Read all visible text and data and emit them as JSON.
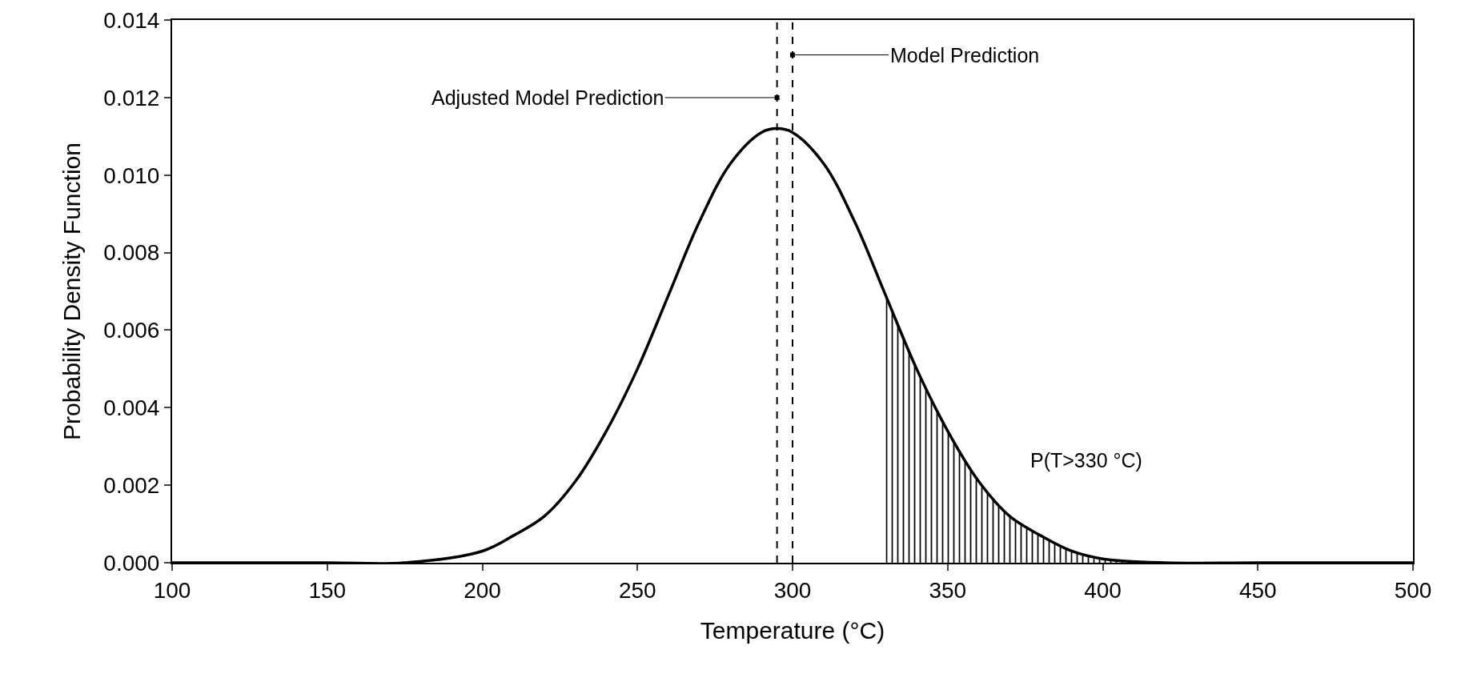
{
  "chart_data": {
    "type": "line",
    "xlabel": "Temperature (°C)",
    "ylabel": "Probability Density Function",
    "series": [
      {
        "color": "#000000",
        "x": [
          100,
          150,
          175,
          200,
          210,
          220,
          230,
          240,
          250,
          260,
          270,
          280,
          290,
          295,
          300,
          310,
          320,
          330,
          340,
          350,
          360,
          370,
          380,
          390,
          400,
          420,
          450,
          500
        ],
        "values": [
          0,
          0,
          0,
          0.0003,
          0.0007,
          0.0012,
          0.0021,
          0.0034,
          0.005,
          0.0069,
          0.0088,
          0.0103,
          0.0111,
          0.0112,
          0.0111,
          0.0103,
          0.0088,
          0.0069,
          0.005,
          0.0034,
          0.0021,
          0.0012,
          0.0007,
          0.0003,
          0.0001,
          0,
          0,
          0
        ]
      },
      {
        "type": "area",
        "color": "#000000",
        "x": [
          330,
          340,
          350,
          360,
          370,
          380,
          390,
          400,
          420
        ],
        "values": [
          0.0069,
          0.005,
          0.0034,
          0.0021,
          0.0012,
          0.0007,
          0.0003,
          0.0001,
          0
        ]
      }
    ],
    "xlim": [
      100,
      500
    ],
    "xticks": [
      100,
      150,
      200,
      250,
      300,
      350,
      400,
      450,
      500
    ],
    "ylim": [
      0,
      0.014
    ],
    "yticks": [
      {
        "value": 0,
        "label": "0.000"
      },
      {
        "value": 0.002,
        "label": "0.002"
      },
      {
        "value": 0.004,
        "label": "0.004"
      },
      {
        "value": 0.006,
        "label": "0.006"
      },
      {
        "value": 0.008,
        "label": "0.008"
      },
      {
        "value": 0.01,
        "label": "0.010"
      },
      {
        "value": 0.012,
        "label": "0.012"
      },
      {
        "value": 0.014,
        "label": "0.014"
      }
    ],
    "ref_lines": [
      {
        "axis": "x",
        "value": 295,
        "label": "Adjusted Model Prediction",
        "line_style": "dashed",
        "color": "#000000"
      },
      {
        "axis": "x",
        "value": 300,
        "label": "Model Prediction",
        "line_style": "dashed",
        "color": "#000000"
      }
    ],
    "annotations": [
      "P(T>330 °C)"
    ],
    "grid": false,
    "legend": false
  }
}
